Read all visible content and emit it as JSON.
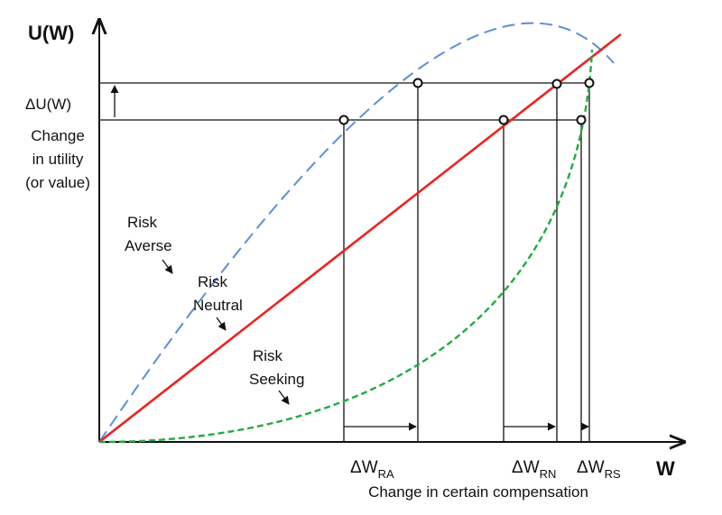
{
  "diagram": {
    "y_axis_label": "U(W)",
    "x_axis_label": "W",
    "delta_u_label": "ΔU(W)",
    "change_utility_lines": [
      "Change",
      "in utility",
      "(or value)"
    ],
    "x_caption": "Change in certain compensation",
    "curves": {
      "risk_averse": {
        "lines": [
          "Risk",
          "Averse"
        ],
        "color": "#5b8fd6",
        "style": "long-dash"
      },
      "risk_neutral": {
        "lines": [
          "Risk",
          "Neutral"
        ],
        "color": "#ee2222",
        "style": "solid"
      },
      "risk_seeking": {
        "lines": [
          "Risk",
          "Seeking"
        ],
        "color": "#22aa44",
        "style": "short-dash"
      }
    },
    "delta_w": {
      "prefix": "ΔW",
      "risk_averse": "RA",
      "risk_neutral": "RN",
      "risk_seeking": "RS"
    }
  }
}
